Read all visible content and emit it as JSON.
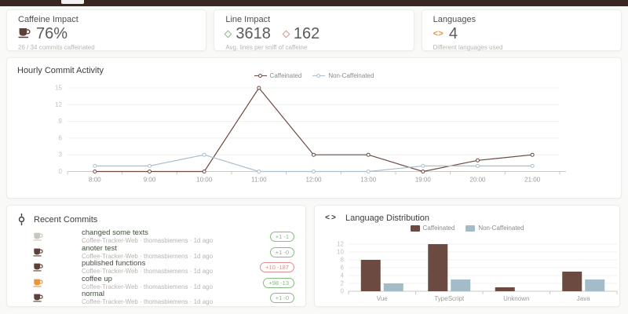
{
  "colors": {
    "navbar": "#3a2722",
    "caffeinated": "#6b4a41",
    "non_caffeinated": "#a9c0cc",
    "green": "#85bb85",
    "red": "#dd8f8f",
    "orange": "#e8953f",
    "cup_brown": "#5d4037",
    "cup_gray": "#c9c5bf"
  },
  "stats": {
    "caffeine": {
      "title": "Caffeine Impact",
      "value": "76%",
      "subtitle": "26 / 34 commits caffeinated"
    },
    "lines": {
      "title": "Line Impact",
      "added": "3618",
      "removed": "162",
      "subtitle": "Avg. lines per sniff of caffeine"
    },
    "languages": {
      "title": "Languages",
      "value": "4",
      "code_glyph": "<>",
      "subtitle": "Different languages used"
    }
  },
  "recent": {
    "title": "Recent Commits",
    "items": [
      {
        "message": "changed some texts",
        "meta": "Coffee-Tracker-Web · thomasbiemens · 1d ago",
        "badge": "+1 -1",
        "badge_type": "green",
        "cup_color": "#c9c5bf"
      },
      {
        "message": "anoter test",
        "meta": "Coffee-Tracker-Web · thomasbiemens · 1d ago",
        "badge": "+1 -0",
        "badge_type": "green",
        "cup_color": "#5d4037"
      },
      {
        "message": "published functions",
        "meta": "Coffee-Tracker-Web · thomasbiemens · 1d ago",
        "badge": "+10 -187",
        "badge_type": "red",
        "cup_color": "#5d4037"
      },
      {
        "message": "coffee up",
        "meta": "Coffee-Tracker-Web · thomasbiemens · 1d ago",
        "badge": "+98 -13",
        "badge_type": "green",
        "cup_color": "#e8953f"
      },
      {
        "message": "normal",
        "meta": "Coffee-Tracker-Web · thomasbiemens · 1d ago",
        "badge": "+1 -0",
        "badge_type": "green",
        "cup_color": "#5d4037"
      }
    ]
  },
  "chart_data": [
    {
      "type": "line",
      "title": "Hourly Commit Activity",
      "categories": [
        "8:00",
        "9:00",
        "10:00",
        "11:00",
        "12:00",
        "13:00",
        "19:00",
        "20:00",
        "21:00"
      ],
      "series": [
        {
          "name": "Caffeinated",
          "color": "#6b4a41",
          "values": [
            0,
            0,
            0,
            15,
            3,
            3,
            0,
            2,
            3
          ]
        },
        {
          "name": "Non-Caffeinated",
          "color": "#a9c0cc",
          "values": [
            1,
            1,
            3,
            0,
            0,
            0,
            1,
            1,
            1
          ]
        }
      ],
      "xlabel": "",
      "ylabel": "",
      "ylim": [
        0,
        15
      ],
      "ytick_step": 3,
      "grid": true,
      "legend_position": "top-center",
      "marker": "hollow-circle"
    },
    {
      "type": "bar",
      "title": "Language Distribution",
      "categories": [
        "Vue",
        "TypeScript",
        "Unknown",
        "Java"
      ],
      "series": [
        {
          "name": "Caffeinated",
          "color": "#6b4a41",
          "values": [
            8,
            12,
            1,
            5
          ]
        },
        {
          "name": "Non-Caffeinated",
          "color": "#a4bbc8",
          "values": [
            2,
            3,
            0,
            3
          ]
        }
      ],
      "xlabel": "",
      "ylabel": "",
      "ylim": [
        0,
        12
      ],
      "ytick_step": 2,
      "grid": true,
      "legend_position": "top-center"
    }
  ]
}
